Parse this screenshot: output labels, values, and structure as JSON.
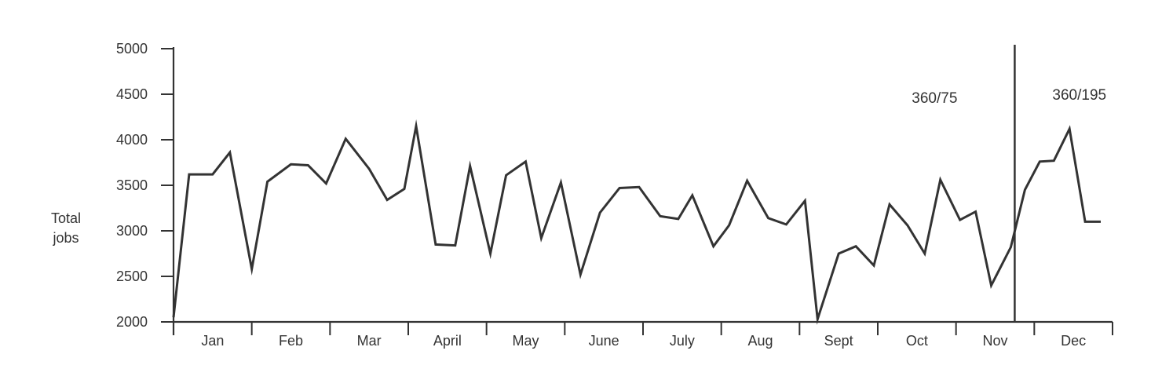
{
  "chart_data": {
    "type": "line",
    "ylabel": [
      "Total",
      "jobs"
    ],
    "ylim": [
      2000,
      5000
    ],
    "yticks": [
      2000,
      2500,
      3000,
      3500,
      4000,
      4500,
      5000
    ],
    "grid": false,
    "months": [
      "Jan",
      "Feb",
      "Mar",
      "April",
      "May",
      "June",
      "July",
      "Aug",
      "Sept",
      "Oct",
      "Nov",
      "Dec"
    ],
    "series": [
      {
        "x": [
          0.0,
          0.2,
          0.5,
          0.72,
          1.0,
          1.2,
          1.5,
          1.72,
          1.95,
          2.2,
          2.5,
          2.73,
          2.95,
          3.1,
          3.35,
          3.6,
          3.79,
          4.05,
          4.25,
          4.5,
          4.7,
          4.95,
          5.2,
          5.45,
          5.7,
          5.95,
          6.22,
          6.45,
          6.63,
          6.9,
          7.1,
          7.33,
          7.6,
          7.83,
          8.07,
          8.23,
          8.5,
          8.72,
          8.95,
          9.15,
          9.38,
          9.6,
          9.8,
          10.05,
          10.25,
          10.45,
          10.7,
          10.88,
          11.07,
          11.25,
          11.45,
          11.65,
          11.85
        ],
        "y": [
          2050,
          3620,
          3620,
          3860,
          2580,
          3540,
          3730,
          3720,
          3520,
          4010,
          3680,
          3340,
          3460,
          4150,
          2850,
          2840,
          3710,
          2750,
          3610,
          3760,
          2920,
          3530,
          2520,
          3200,
          3470,
          3480,
          3160,
          3130,
          3390,
          2830,
          3060,
          3550,
          3140,
          3070,
          3330,
          2030,
          2750,
          2830,
          2620,
          3290,
          3060,
          2750,
          3560,
          3120,
          3210,
          2400,
          2820,
          3450,
          3760,
          3770,
          4120,
          3100,
          3100
        ]
      }
    ],
    "divider_x": 10.75,
    "annotations": [
      "360/75",
      "360/195"
    ],
    "colors": {
      "line": "#333333",
      "text": "#333333"
    }
  }
}
